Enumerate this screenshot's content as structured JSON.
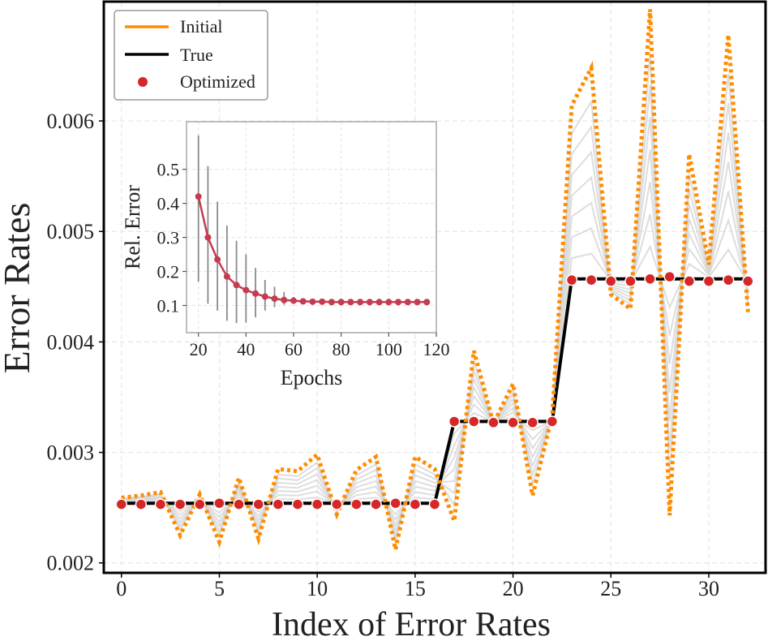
{
  "chart_data": [
    {
      "type": "line",
      "xlabel": "Index of Error Rates",
      "ylabel": "Error Rates",
      "xlim": [
        -0.9,
        32.9
      ],
      "ylim": [
        0.00191,
        0.00708
      ],
      "xticks": [
        0,
        5,
        10,
        15,
        20,
        25,
        30
      ],
      "yticks": [
        0.002,
        0.003,
        0.004,
        0.005,
        0.006
      ],
      "ytick_labels": [
        "0.002",
        "0.003",
        "0.004",
        "0.005",
        "0.006"
      ],
      "grid": true,
      "legend_position": "top-left",
      "legend": [
        "Initial",
        "True",
        "Optimized"
      ],
      "x": [
        0,
        1,
        2,
        3,
        4,
        5,
        6,
        7,
        8,
        9,
        10,
        11,
        12,
        13,
        14,
        15,
        16,
        17,
        18,
        19,
        20,
        21,
        22,
        23,
        24,
        25,
        26,
        27,
        28,
        29,
        30,
        31,
        32
      ],
      "series": [
        {
          "name": "Initial",
          "style": "dotted",
          "color": "#ff8c00",
          "values": [
            0.00259,
            0.00261,
            0.00264,
            0.00225,
            0.00262,
            0.00219,
            0.00277,
            0.00222,
            0.00285,
            0.00283,
            0.00298,
            0.00244,
            0.00284,
            0.00296,
            0.00212,
            0.00296,
            0.00285,
            0.00238,
            0.00392,
            0.00326,
            0.00362,
            0.00261,
            0.00333,
            0.00614,
            0.00648,
            0.00443,
            0.0043,
            0.00701,
            0.00243,
            0.0057,
            0.0047,
            0.00678,
            0.00427
          ]
        },
        {
          "name": "True",
          "style": "solid",
          "color": "#000000",
          "values": [
            0.00254,
            0.00254,
            0.00254,
            0.00254,
            0.00254,
            0.00254,
            0.00254,
            0.00254,
            0.00254,
            0.00254,
            0.00254,
            0.00254,
            0.00254,
            0.00254,
            0.00254,
            0.00254,
            0.00254,
            0.00328,
            0.00328,
            0.00328,
            0.00328,
            0.00328,
            0.00328,
            0.00457,
            0.00457,
            0.00457,
            0.00457,
            0.00457,
            0.00457,
            0.00457,
            0.00457,
            0.00457,
            0.00457
          ]
        },
        {
          "name": "Optimized",
          "style": "markers",
          "color": "#d62728",
          "values": [
            0.00253,
            0.00253,
            0.00253,
            0.00253,
            0.00253,
            0.00254,
            0.00253,
            0.00253,
            0.00253,
            0.00253,
            0.00253,
            0.00253,
            0.00253,
            0.00253,
            0.00254,
            0.00253,
            0.00253,
            0.00328,
            0.00328,
            0.00327,
            0.00327,
            0.00327,
            0.00328,
            0.00456,
            0.00456,
            0.00455,
            0.00455,
            0.00457,
            0.00459,
            0.00455,
            0.00455,
            0.00456,
            0.00455
          ]
        }
      ]
    },
    {
      "type": "line",
      "xlabel": "Epochs",
      "ylabel": "Rel. Error",
      "xlim": [
        15,
        120
      ],
      "ylim": [
        0.02,
        0.64
      ],
      "xticks": [
        20,
        40,
        60,
        80,
        100,
        120
      ],
      "yticks": [
        0.1,
        0.2,
        0.3,
        0.4,
        0.5
      ],
      "ytick_labels": [
        "0.1",
        "0.2",
        "0.3",
        "0.4",
        "0.5"
      ],
      "grid": true,
      "series": [
        {
          "color": "#c43c4f",
          "x": [
            20,
            24,
            28,
            32,
            36,
            40,
            44,
            48,
            52,
            56,
            60,
            64,
            68,
            72,
            76,
            80,
            84,
            88,
            92,
            96,
            100,
            104,
            108,
            112,
            116
          ],
          "values": [
            0.42,
            0.3,
            0.235,
            0.185,
            0.16,
            0.145,
            0.135,
            0.126,
            0.12,
            0.116,
            0.114,
            0.112,
            0.111,
            0.111,
            0.11,
            0.11,
            0.11,
            0.11,
            0.11,
            0.11,
            0.11,
            0.11,
            0.11,
            0.11,
            0.11
          ],
          "error_low": [
            0.17,
            0.105,
            0.085,
            0.055,
            0.048,
            0.05,
            0.065,
            0.085,
            0.095,
            0.102,
            0.108,
            0.11,
            0.111,
            0.111,
            0.11,
            0.11,
            0.11,
            0.11,
            0.11,
            0.11,
            0.11,
            0.11,
            0.11,
            0.11,
            0.11
          ],
          "error_high": [
            0.6,
            0.51,
            0.405,
            0.335,
            0.29,
            0.25,
            0.21,
            0.175,
            0.155,
            0.14,
            0.125,
            0.115,
            0.111,
            0.111,
            0.11,
            0.11,
            0.11,
            0.11,
            0.11,
            0.11,
            0.11,
            0.11,
            0.11,
            0.11,
            0.11
          ]
        }
      ]
    }
  ]
}
